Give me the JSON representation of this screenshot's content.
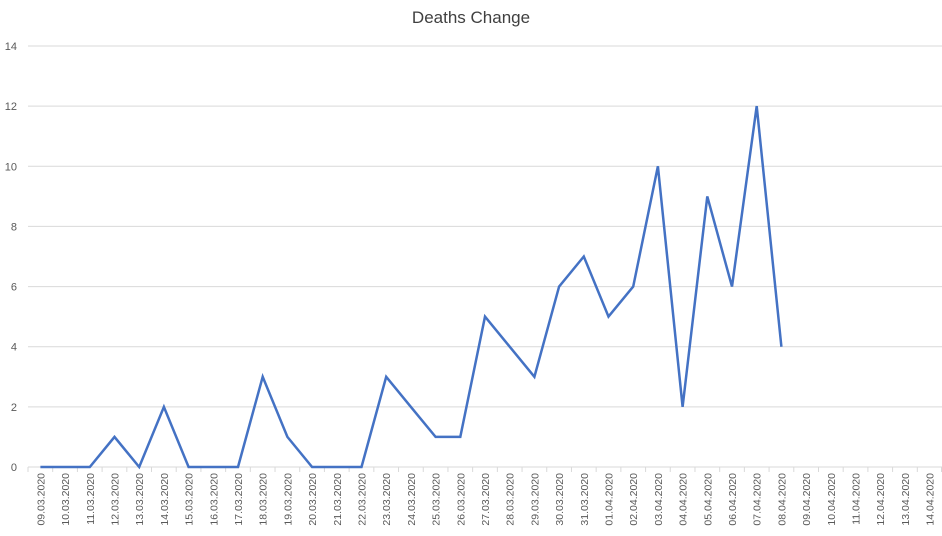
{
  "chart_data": {
    "type": "line",
    "title": "Deaths Change",
    "xlabel": "",
    "ylabel": "",
    "ylim": [
      0,
      14
    ],
    "yticks": [
      0,
      2,
      4,
      6,
      8,
      10,
      12,
      14
    ],
    "grid": true,
    "legend": "none",
    "line_color": "#4472c4",
    "grid_color": "#d9d9d9",
    "categories": [
      "09.03.2020",
      "10.03.2020",
      "11.03.2020",
      "12.03.2020",
      "13.03.2020",
      "14.03.2020",
      "15.03.2020",
      "16.03.2020",
      "17.03.2020",
      "18.03.2020",
      "19.03.2020",
      "20.03.2020",
      "21.03.2020",
      "22.03.2020",
      "23.03.2020",
      "24.03.2020",
      "25.03.2020",
      "26.03.2020",
      "27.03.2020",
      "28.03.2020",
      "29.03.2020",
      "30.03.2020",
      "31.03.2020",
      "01.04.2020",
      "02.04.2020",
      "03.04.2020",
      "04.04.2020",
      "05.04.2020",
      "06.04.2020",
      "07.04.2020",
      "08.04.2020",
      "09.04.2020",
      "10.04.2020",
      "11.04.2020",
      "12.04.2020",
      "13.04.2020",
      "14.04.2020"
    ],
    "series": [
      {
        "values": [
          0,
          0,
          0,
          1,
          0,
          2,
          0,
          0,
          0,
          3,
          1,
          0,
          0,
          0,
          3,
          2,
          1,
          1,
          5,
          4,
          3,
          6,
          7,
          5,
          6,
          10,
          2,
          9,
          6,
          12,
          4,
          null,
          null,
          null,
          null,
          null,
          null
        ]
      }
    ]
  }
}
